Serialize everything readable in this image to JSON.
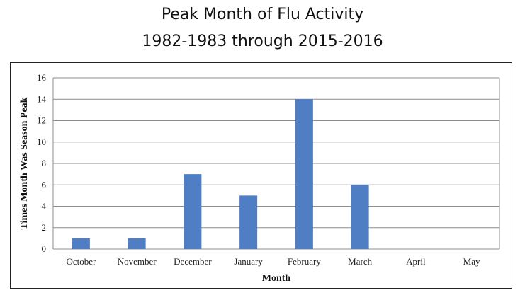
{
  "title_line_1": "Peak Month of Flu Activity",
  "title_line_2": "1982-1983 through 2015-2016",
  "chart_data": {
    "type": "bar",
    "categories": [
      "October",
      "November",
      "December",
      "January",
      "February",
      "March",
      "April",
      "May"
    ],
    "values": [
      1,
      1,
      7,
      5,
      14,
      6,
      0,
      0
    ],
    "title": "Peak Month of Flu Activity 1982-1983 through 2015-2016",
    "xlabel": "Month",
    "ylabel": "Times Month Was Season Peak",
    "ylim": [
      0,
      16
    ],
    "yticks": [
      0,
      2,
      4,
      6,
      8,
      10,
      12,
      14,
      16
    ],
    "grid": true,
    "legend": "none",
    "bar_color": "#4f7ec4",
    "grid_color": "#8c8c8c"
  }
}
